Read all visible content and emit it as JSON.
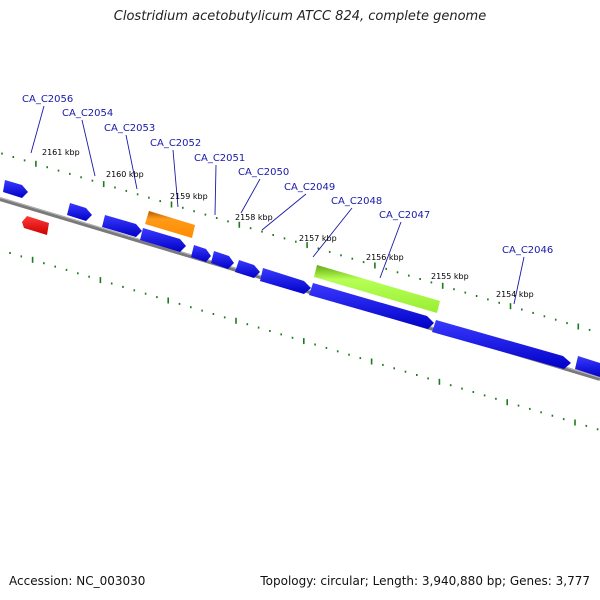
{
  "title": "Clostridium acetobutylicum ATCC 824, complete genome",
  "footer": {
    "accession": "Accession: NC_003030",
    "summary": "Topology: circular; Length: 3,940,880 bp; Genes: 3,777"
  },
  "colors": {
    "backbone": "#7a7a7a",
    "tick": "#1e7a1e",
    "gene_label": "#1a1aa8",
    "cds": "#0000ee",
    "rrna": "#ee0000",
    "orange": "#ff8c00",
    "lime": "#99ee33"
  },
  "scale_labels": [
    "2161 kbp",
    "2160 kbp",
    "2159 kbp",
    "2158 kbp",
    "2157 kbp",
    "2156 kbp",
    "2155 kbp",
    "2154 kbp"
  ],
  "gene_labels": [
    "CA_C2056",
    "CA_C2054",
    "CA_C2053",
    "CA_C2052",
    "CA_C2051",
    "CA_C2050",
    "CA_C2049",
    "CA_C2048",
    "CA_C2047",
    "CA_C2046"
  ],
  "features": [
    {
      "type": "CDS",
      "color": "blue"
    },
    {
      "type": "rRNA",
      "color": "red"
    },
    {
      "type": "CDS",
      "color": "blue"
    },
    {
      "type": "CDS",
      "color": "blue"
    },
    {
      "type": "CDS",
      "color": "orange"
    },
    {
      "type": "CDS",
      "color": "blue"
    },
    {
      "type": "CDS",
      "color": "blue"
    },
    {
      "type": "CDS",
      "color": "blue"
    },
    {
      "type": "CDS",
      "color": "blue"
    },
    {
      "type": "CDS",
      "color": "blue"
    },
    {
      "type": "CDS",
      "color": "lime"
    },
    {
      "type": "CDS",
      "color": "blue"
    },
    {
      "type": "CDS",
      "color": "blue"
    },
    {
      "type": "CDS",
      "color": "blue"
    },
    {
      "type": "CDS",
      "color": "blue"
    }
  ]
}
